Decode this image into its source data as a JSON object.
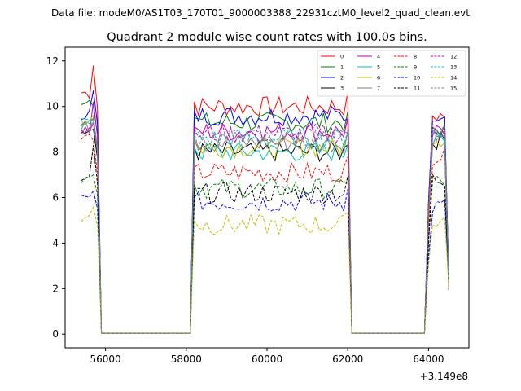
{
  "chart_data": {
    "type": "line",
    "suptitle": "Data file: modeM0/AS1T03_170T01_9000003388_22931cztM0_level2_quad_clean.evt",
    "title": "Quadrant 2 module wise count rates with 100.0s bins.",
    "offset_label": "+3.149e8",
    "xlim": [
      55000,
      65000
    ],
    "ylim": [
      -0.6,
      12.6
    ],
    "xticks": [
      56000,
      58000,
      60000,
      62000,
      64000
    ],
    "xtick_labels": [
      "56000",
      "58000",
      "60000",
      "62000",
      "64000"
    ],
    "yticks": [
      0,
      2,
      4,
      6,
      8,
      10,
      12
    ],
    "ytick_labels": [
      "0",
      "2",
      "4",
      "6",
      "8",
      "10",
      "12"
    ],
    "grid": false,
    "legend_position": "top-right",
    "segments": [
      {
        "start": 55400,
        "end": 55800
      },
      {
        "start": 58200,
        "end": 62000
      },
      {
        "start": 64000,
        "end": 64500
      }
    ],
    "gaps": [
      {
        "start": 55900,
        "end": 58100
      },
      {
        "start": 62100,
        "end": 63900
      }
    ],
    "series": [
      {
        "name": "0",
        "color": "#ff0000",
        "dash": false,
        "level": 10.0,
        "start_level": 10.6,
        "peak": 11.8,
        "end_level": 10.5,
        "last_seg_level": 9.6
      },
      {
        "name": "1",
        "color": "#008000",
        "dash": false,
        "level": 9.3,
        "start_level": 10.3,
        "peak": 10.0,
        "end_level": 9.5,
        "last_seg_level": 9.0
      },
      {
        "name": "2",
        "color": "#0000ff",
        "dash": false,
        "level": 9.6,
        "start_level": 9.7,
        "peak": 10.7,
        "end_level": 9.4,
        "last_seg_level": 9.7
      },
      {
        "name": "3",
        "color": "#000000",
        "dash": false,
        "level": 8.0,
        "start_level": 8.9,
        "peak": 9.0,
        "end_level": 8.2,
        "last_seg_level": 8.5
      },
      {
        "name": "4",
        "color": "#bf00bf",
        "dash": false,
        "level": 8.9,
        "start_level": 9.0,
        "peak": 10.2,
        "end_level": 9.0,
        "last_seg_level": 8.8
      },
      {
        "name": "5",
        "color": "#00bfbf",
        "dash": false,
        "level": 8.0,
        "start_level": 9.2,
        "peak": 9.5,
        "end_level": 8.3,
        "last_seg_level": 8.4
      },
      {
        "name": "6",
        "color": "#bfbf00",
        "dash": false,
        "level": 8.2,
        "start_level": 9.4,
        "peak": 9.6,
        "end_level": 8.4,
        "last_seg_level": 8.6
      },
      {
        "name": "7",
        "color": "#808080",
        "dash": false,
        "level": 8.4,
        "start_level": 9.1,
        "peak": 9.3,
        "end_level": 8.5,
        "last_seg_level": 8.7
      },
      {
        "name": "8",
        "color": "#ff0000",
        "dash": true,
        "level": 7.1,
        "start_level": 8.6,
        "peak": 8.5,
        "end_level": 7.4,
        "last_seg_level": 7.8
      },
      {
        "name": "9",
        "color": "#008000",
        "dash": true,
        "level": 6.4,
        "start_level": 6.8,
        "peak": 7.0,
        "end_level": 6.6,
        "last_seg_level": 6.7
      },
      {
        "name": "10",
        "color": "#0000ff",
        "dash": true,
        "level": 5.8,
        "start_level": 5.9,
        "peak": 6.3,
        "end_level": 6.0,
        "last_seg_level": 5.6
      },
      {
        "name": "11",
        "color": "#000000",
        "dash": true,
        "level": 6.2,
        "start_level": 6.7,
        "peak": 8.3,
        "end_level": 6.6,
        "last_seg_level": 6.8
      },
      {
        "name": "12",
        "color": "#bf00bf",
        "dash": true,
        "level": 8.8,
        "start_level": 9.0,
        "peak": 9.2,
        "end_level": 8.9,
        "last_seg_level": 9.1
      },
      {
        "name": "13",
        "color": "#00bfbf",
        "dash": true,
        "level": 8.6,
        "start_level": 9.3,
        "peak": 9.4,
        "end_level": 8.8,
        "last_seg_level": 8.9
      },
      {
        "name": "14",
        "color": "#bfbf00",
        "dash": true,
        "level": 4.8,
        "start_level": 5.1,
        "peak": 5.6,
        "end_level": 5.1,
        "last_seg_level": 5.0
      },
      {
        "name": "15",
        "color": "#808080",
        "dash": true,
        "level": 8.6,
        "start_level": 9.1,
        "peak": 9.5,
        "end_level": 8.7,
        "last_seg_level": 8.9
      }
    ]
  }
}
